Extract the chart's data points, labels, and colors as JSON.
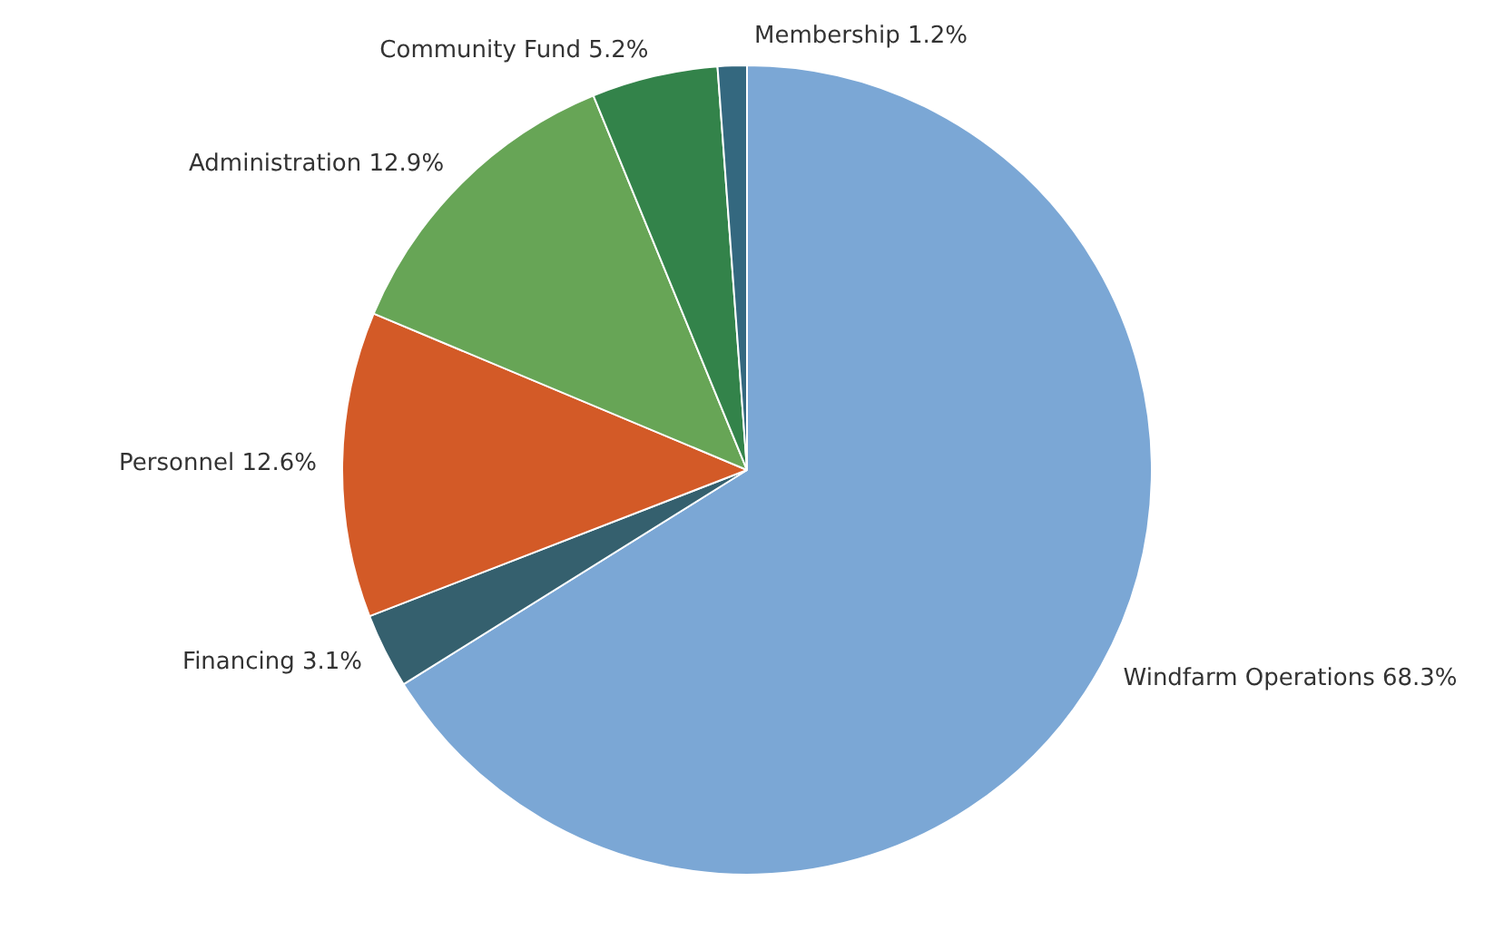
{
  "chart_data": {
    "type": "pie",
    "categories": [
      "Windfarm Operations",
      "Financing",
      "Personnel",
      "Administration",
      "Community Fund",
      "Membership"
    ],
    "values": [
      68.3,
      3.1,
      12.6,
      12.9,
      5.2,
      1.2
    ],
    "colors": [
      "#7ba7d5",
      "#35606e",
      "#d35a27",
      "#67a556",
      "#33834a",
      "#34687f"
    ],
    "value_labels": [
      "68.3%",
      "3.1%",
      "12.6%",
      "12.9%",
      "5.2%",
      "1.2%"
    ],
    "legend": false
  }
}
